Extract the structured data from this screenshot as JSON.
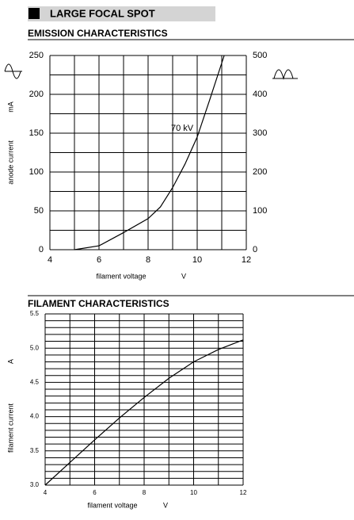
{
  "header": {
    "title": "LARGE FOCAL SPOT"
  },
  "chart_data": [
    {
      "type": "line",
      "title": "EMISSION CHARACTERISTICS",
      "x_label": "filament voltage",
      "x_unit": "V",
      "y_label": "anode current",
      "y_unit": "mA",
      "annotation": "70 kV",
      "xlim": [
        4,
        12
      ],
      "xticks": [
        4,
        6,
        8,
        10,
        12
      ],
      "ylim": [
        0,
        250
      ],
      "yticks": [
        0,
        50,
        100,
        150,
        200,
        250
      ],
      "y2lim": [
        0,
        500
      ],
      "y2ticks": [
        0,
        100,
        200,
        300,
        400,
        500
      ],
      "x_gridlines": [
        4,
        5,
        6,
        7,
        8,
        9,
        10,
        11,
        12
      ],
      "y_gridlines": [
        0,
        25,
        50,
        75,
        100,
        125,
        150,
        175,
        200,
        225,
        250
      ],
      "grid": true,
      "series": [
        {
          "color": "#000000",
          "x": [
            5,
            6,
            7,
            8,
            8.5,
            9,
            9.5,
            10,
            10.5,
            11.1
          ],
          "values": [
            0,
            5,
            22,
            40,
            55,
            80,
            110,
            145,
            192,
            250
          ]
        }
      ]
    },
    {
      "type": "line",
      "title": "FILAMENT CHARACTERISTICS",
      "x_label": "filament voltage",
      "x_unit": "V",
      "y_label": "filament current",
      "y_unit": "A",
      "xlim": [
        4,
        12
      ],
      "xticks": [
        4,
        6,
        8,
        10,
        12
      ],
      "ylim": [
        3.0,
        5.5
      ],
      "yticks": [
        {
          "value": 3,
          "label": "3.0"
        },
        3.5,
        {
          "value": 4,
          "label": "4.0"
        },
        4.5,
        {
          "value": 5,
          "label": "5.0"
        },
        5.5
      ],
      "x_gridlines": [
        4,
        5,
        6,
        7,
        8,
        9,
        10,
        11,
        12
      ],
      "y_gridlines": [
        3.0,
        3.1,
        3.2,
        3.3,
        3.4,
        3.5,
        3.6,
        3.7,
        3.8,
        3.9,
        4.0,
        4.1,
        4.2,
        4.3,
        4.4,
        4.5,
        4.6,
        4.7,
        4.8,
        4.9,
        5.0,
        5.1,
        5.2,
        5.3,
        5.4,
        5.5
      ],
      "grid": true,
      "series": [
        {
          "color": "#000000",
          "x": [
            4,
            5,
            6,
            7,
            8,
            9,
            10,
            11,
            12
          ],
          "values": [
            3.0,
            3.33,
            3.66,
            3.98,
            4.28,
            4.56,
            4.8,
            4.98,
            5.12
          ]
        }
      ]
    }
  ]
}
